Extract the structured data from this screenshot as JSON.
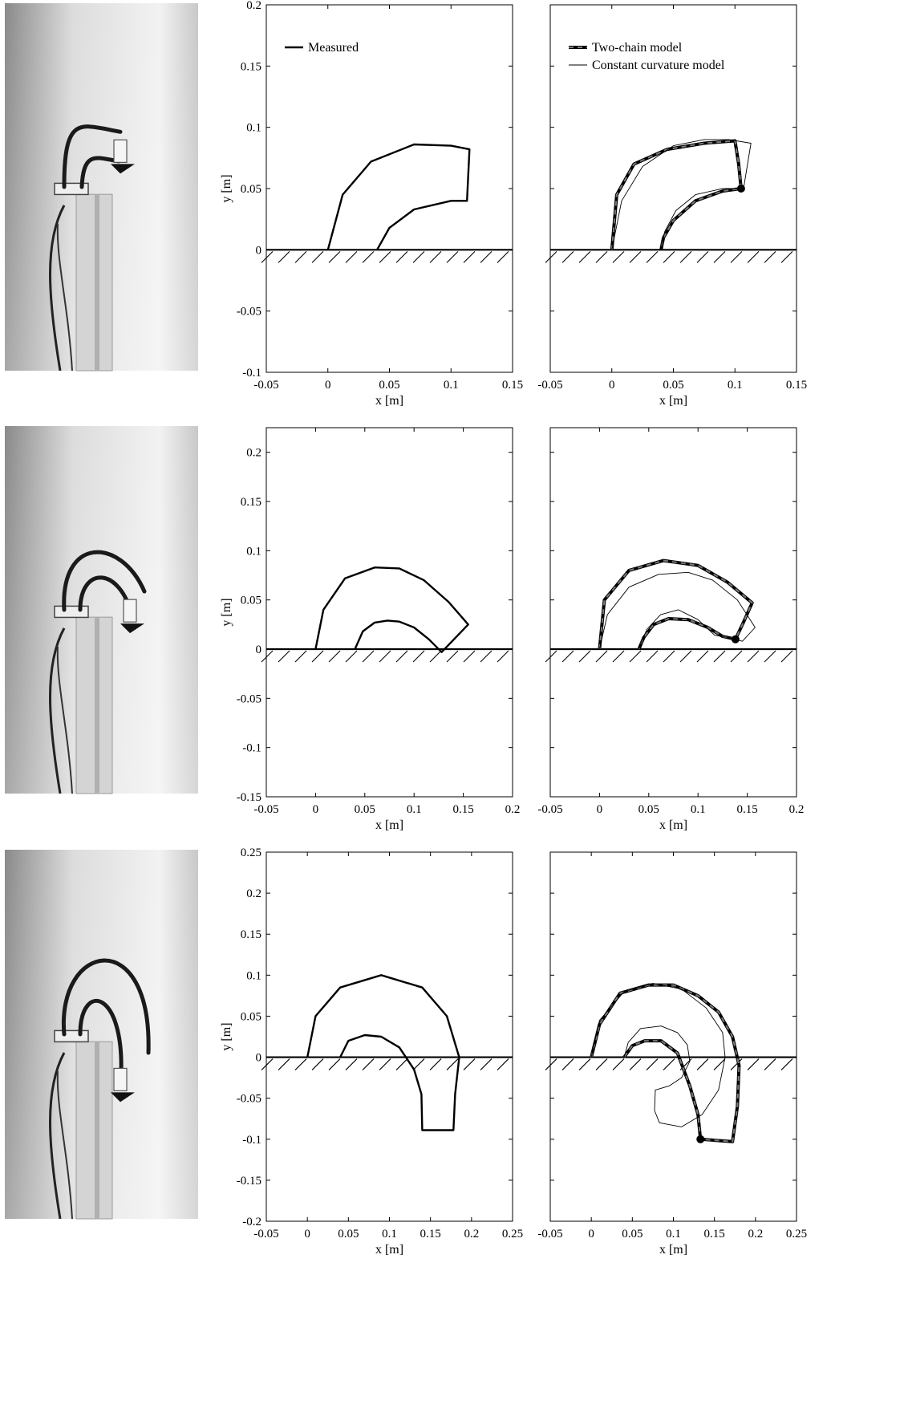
{
  "figure": {
    "colors": {
      "ink": "#000000",
      "model_dash": "#7a7a7a",
      "photo_dark": "#555555",
      "photo_light": "#e6e6e6"
    },
    "legend_left": {
      "label": "Measured"
    },
    "legend_right": {
      "two_chain": "Two-chain model",
      "constant_curvature": "Constant curvature model"
    }
  },
  "chart_data": [
    {
      "row": 1,
      "panel": "measured",
      "type": "line",
      "xlabel": "x [m]",
      "ylabel": "y [m]",
      "xlim": [
        -0.05,
        0.15
      ],
      "ylim": [
        -0.1,
        0.2
      ],
      "xticks": [
        "-0.05",
        "0",
        "0.05",
        "0.1",
        "0.15"
      ],
      "yticks": [
        "-0.1",
        "-0.05",
        "0",
        "0.05",
        "0.1",
        "0.15",
        "0.2"
      ],
      "ground_y": 0,
      "series": [
        {
          "name": "Measured",
          "style": "measured",
          "x": [
            0,
            0.012,
            0.035,
            0.07,
            0.1,
            0.115,
            0.113,
            0.1,
            0.07,
            0.05,
            0.04
          ],
          "y": [
            0,
            0.045,
            0.072,
            0.086,
            0.085,
            0.082,
            0.04,
            0.04,
            0.033,
            0.018,
            0
          ]
        }
      ]
    },
    {
      "row": 1,
      "panel": "models",
      "type": "line",
      "xlabel": "x [m]",
      "ylabel": "",
      "xlim": [
        -0.05,
        0.15
      ],
      "ylim": [
        -0.1,
        0.2
      ],
      "xticks": [
        "-0.05",
        "0",
        "0.05",
        "0.1",
        "0.15"
      ],
      "yticks": [],
      "ground_y": 0,
      "tip_point": [
        0.105,
        0.05
      ],
      "series": [
        {
          "name": "Two-chain model",
          "style": "two-chain",
          "x": [
            0,
            0.004,
            0.018,
            0.045,
            0.075,
            0.1,
            0.103,
            0.105,
            0.09,
            0.068,
            0.05,
            0.042,
            0.04
          ],
          "y": [
            0,
            0.045,
            0.07,
            0.082,
            0.087,
            0.089,
            0.07,
            0.05,
            0.048,
            0.04,
            0.024,
            0.01,
            0
          ]
        },
        {
          "name": "Constant curvature model",
          "style": "constant-curvature",
          "x": [
            0,
            0.008,
            0.025,
            0.05,
            0.075,
            0.095,
            0.113,
            0.107,
            0.09,
            0.068,
            0.052,
            0.043,
            0.04
          ],
          "y": [
            0,
            0.04,
            0.068,
            0.085,
            0.09,
            0.09,
            0.087,
            0.05,
            0.05,
            0.045,
            0.032,
            0.015,
            0
          ]
        }
      ]
    },
    {
      "row": 2,
      "panel": "measured",
      "type": "line",
      "xlabel": "x [m]",
      "ylabel": "y [m]",
      "xlim": [
        -0.05,
        0.2
      ],
      "ylim": [
        -0.15,
        0.225
      ],
      "xticks": [
        "-0.05",
        "0",
        "0.05",
        "0.1",
        "0.15",
        "0.2"
      ],
      "yticks": [
        "-0.15",
        "-0.1",
        "-0.05",
        "0",
        "0.05",
        "0.1",
        "0.15",
        "0.2"
      ],
      "ground_y": 0,
      "series": [
        {
          "name": "Measured",
          "style": "measured",
          "x": [
            0,
            0.008,
            0.03,
            0.06,
            0.085,
            0.11,
            0.135,
            0.155,
            0.128,
            0.115,
            0.1,
            0.085,
            0.073,
            0.06,
            0.048,
            0.04
          ],
          "y": [
            0,
            0.04,
            0.072,
            0.083,
            0.082,
            0.07,
            0.048,
            0.025,
            -0.003,
            0.01,
            0.022,
            0.028,
            0.029,
            0.027,
            0.018,
            0
          ]
        }
      ]
    },
    {
      "row": 2,
      "panel": "models",
      "type": "line",
      "xlabel": "x [m]",
      "ylabel": "",
      "xlim": [
        -0.05,
        0.2
      ],
      "ylim": [
        -0.15,
        0.225
      ],
      "xticks": [
        "-0.05",
        "0",
        "0.05",
        "0.1",
        "0.15",
        "0.2"
      ],
      "yticks": [],
      "ground_y": 0,
      "tip_point": [
        0.138,
        0.01
      ],
      "series": [
        {
          "name": "Two-chain model",
          "style": "two-chain",
          "x": [
            0,
            0.005,
            0.03,
            0.065,
            0.1,
            0.13,
            0.155,
            0.146,
            0.138,
            0.125,
            0.11,
            0.09,
            0.07,
            0.055,
            0.045,
            0.04
          ],
          "y": [
            0,
            0.05,
            0.08,
            0.09,
            0.085,
            0.068,
            0.047,
            0.027,
            0.01,
            0.013,
            0.022,
            0.03,
            0.031,
            0.025,
            0.012,
            0
          ]
        },
        {
          "name": "Constant curvature model",
          "style": "constant-curvature",
          "x": [
            0,
            0.008,
            0.03,
            0.06,
            0.09,
            0.115,
            0.14,
            0.158,
            0.145,
            0.13,
            0.117,
            0.1,
            0.08,
            0.062,
            0.048,
            0.04
          ],
          "y": [
            0,
            0.035,
            0.063,
            0.076,
            0.078,
            0.07,
            0.05,
            0.022,
            0.008,
            0.012,
            0.014,
            0.03,
            0.04,
            0.035,
            0.02,
            0
          ]
        }
      ]
    },
    {
      "row": 3,
      "panel": "measured",
      "type": "line",
      "xlabel": "x [m]",
      "ylabel": "y [m]",
      "xlim": [
        -0.05,
        0.25
      ],
      "ylim": [
        -0.2,
        0.25
      ],
      "xticks": [
        "-0.05",
        "0",
        "0.05",
        "0.1",
        "0.15",
        "0.2",
        "0.25"
      ],
      "yticks": [
        "-0.2",
        "-0.15",
        "-0.1",
        "-0.05",
        "0",
        "0.05",
        "0.1",
        "0.15",
        "0.2",
        "0.25"
      ],
      "ground_y": 0,
      "series": [
        {
          "name": "Measured",
          "style": "measured",
          "x": [
            0,
            0.01,
            0.04,
            0.09,
            0.14,
            0.17,
            0.185,
            0.18,
            0.178,
            0.14,
            0.139,
            0.13,
            0.112,
            0.09,
            0.07,
            0.05,
            0.04
          ],
          "y": [
            0,
            0.05,
            0.085,
            0.1,
            0.085,
            0.05,
            0,
            -0.045,
            -0.089,
            -0.089,
            -0.045,
            -0.015,
            0.012,
            0.025,
            0.027,
            0.02,
            0
          ]
        }
      ]
    },
    {
      "row": 3,
      "panel": "models",
      "type": "line",
      "xlabel": "x [m]",
      "ylabel": "",
      "xlim": [
        -0.05,
        0.25
      ],
      "ylim": [
        -0.2,
        0.25
      ],
      "xticks": [
        "-0.05",
        "0",
        "0.05",
        "0.1",
        "0.15",
        "0.2",
        "0.25"
      ],
      "yticks": [],
      "ground_y": 0,
      "tip_point": [
        0.133,
        -0.1
      ],
      "series": [
        {
          "name": "Two-chain model",
          "style": "two-chain",
          "x": [
            0,
            0.01,
            0.035,
            0.07,
            0.1,
            0.13,
            0.155,
            0.172,
            0.18,
            0.178,
            0.172,
            0.133,
            0.13,
            0.12,
            0.105,
            0.085,
            0.065,
            0.05,
            0.04
          ],
          "y": [
            0,
            0.04,
            0.078,
            0.088,
            0.088,
            0.075,
            0.055,
            0.025,
            -0.01,
            -0.06,
            -0.103,
            -0.1,
            -0.07,
            -0.035,
            0.005,
            0.02,
            0.02,
            0.014,
            0
          ]
        },
        {
          "name": "Constant curvature model",
          "style": "constant-curvature",
          "x": [
            0,
            0.01,
            0.04,
            0.075,
            0.11,
            0.14,
            0.16,
            0.163,
            0.155,
            0.135,
            0.11,
            0.083,
            0.077,
            0.078,
            0.095,
            0.11,
            0.12,
            0.117,
            0.105,
            0.085,
            0.06,
            0.045,
            0.04
          ],
          "y": [
            0,
            0.045,
            0.08,
            0.09,
            0.083,
            0.06,
            0.03,
            0,
            -0.04,
            -0.07,
            -0.085,
            -0.08,
            -0.065,
            -0.04,
            -0.035,
            -0.025,
            -0.005,
            0.015,
            0.03,
            0.038,
            0.035,
            0.018,
            0
          ]
        }
      ]
    }
  ]
}
